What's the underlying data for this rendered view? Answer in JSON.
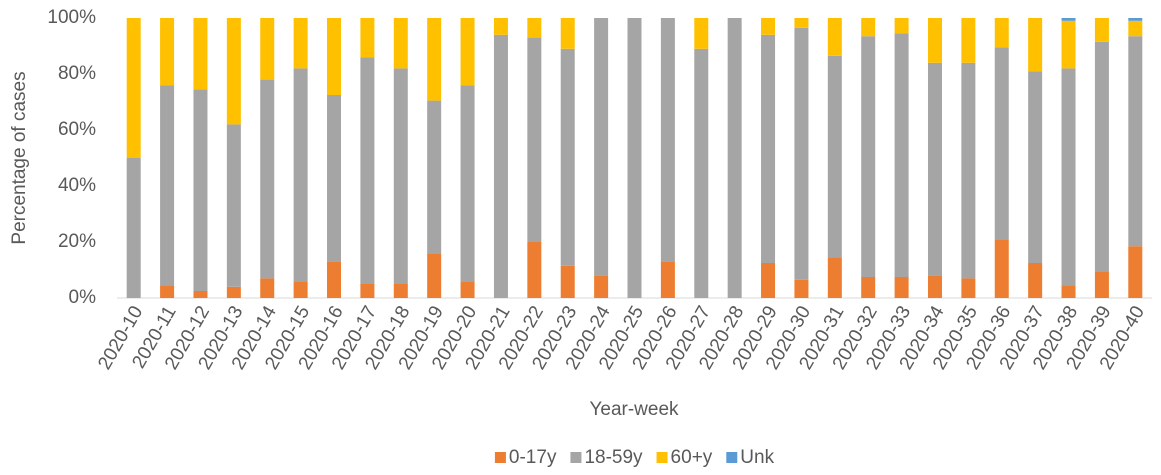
{
  "chart_data": {
    "type": "stacked-bar",
    "x_label": "Year-week",
    "y_label": "Percentage of cases",
    "categories": [
      "2020-10",
      "2020-11",
      "2020-12",
      "2020-13",
      "2020-14",
      "2020-15",
      "2020-16",
      "2020-17",
      "2020-18",
      "2020-19",
      "2020-20",
      "2020-21",
      "2020-22",
      "2020-23",
      "2020-24",
      "2020-25",
      "2020-26",
      "2020-27",
      "2020-28",
      "2020-29",
      "2020-30",
      "2020-31",
      "2020-32",
      "2020-33",
      "2020-34",
      "2020-35",
      "2020-36",
      "2020-37",
      "2020-38",
      "2020-39",
      "2020-40"
    ],
    "series": [
      {
        "name": "0-17y",
        "color": "#ed7d31",
        "values": [
          0,
          4.5,
          2.5,
          4,
          7,
          6,
          13,
          5,
          5,
          16,
          6,
          0,
          20,
          11.5,
          8,
          0,
          13,
          0,
          0,
          12.5,
          6.5,
          14.5,
          7.5,
          7.5,
          8,
          7,
          21,
          12.5,
          4.5,
          9.5,
          18.5
        ]
      },
      {
        "name": "18-59y",
        "color": "#a5a5a5",
        "values": [
          50,
          71.5,
          72,
          58,
          71,
          76,
          59.5,
          81,
          77,
          54.5,
          70,
          94,
          73,
          77.5,
          92,
          100,
          87,
          89,
          100,
          81.5,
          90,
          72,
          86,
          87,
          76,
          77,
          68.5,
          68.5,
          77.5,
          82,
          75
        ]
      },
      {
        "name": "60+y",
        "color": "#ffc000",
        "values": [
          50,
          24,
          25.5,
          38,
          22,
          18,
          27.5,
          14,
          18,
          29.5,
          24,
          6,
          7,
          11,
          0,
          0,
          0,
          11,
          0,
          6,
          3.5,
          13.5,
          6.5,
          5.5,
          16,
          16,
          10.5,
          19,
          17,
          8.5,
          5.5
        ]
      },
      {
        "name": "Unk",
        "color": "#5b9bd5",
        "values": [
          0,
          0,
          0,
          0,
          0,
          0,
          0,
          0,
          0,
          0,
          0,
          0,
          0,
          0,
          0,
          0,
          0,
          0,
          0,
          0,
          0,
          0,
          0,
          0,
          0,
          0,
          0,
          0,
          1,
          0,
          1
        ]
      }
    ],
    "ylim": [
      0,
      100
    ],
    "yticks": [
      {
        "value": 0,
        "label": "0%"
      },
      {
        "value": 20,
        "label": "20%"
      },
      {
        "value": 40,
        "label": "40%"
      },
      {
        "value": 60,
        "label": "60%"
      },
      {
        "value": 80,
        "label": "80%"
      },
      {
        "value": 100,
        "label": "100%"
      }
    ],
    "grid": false,
    "legend": "bottom"
  }
}
